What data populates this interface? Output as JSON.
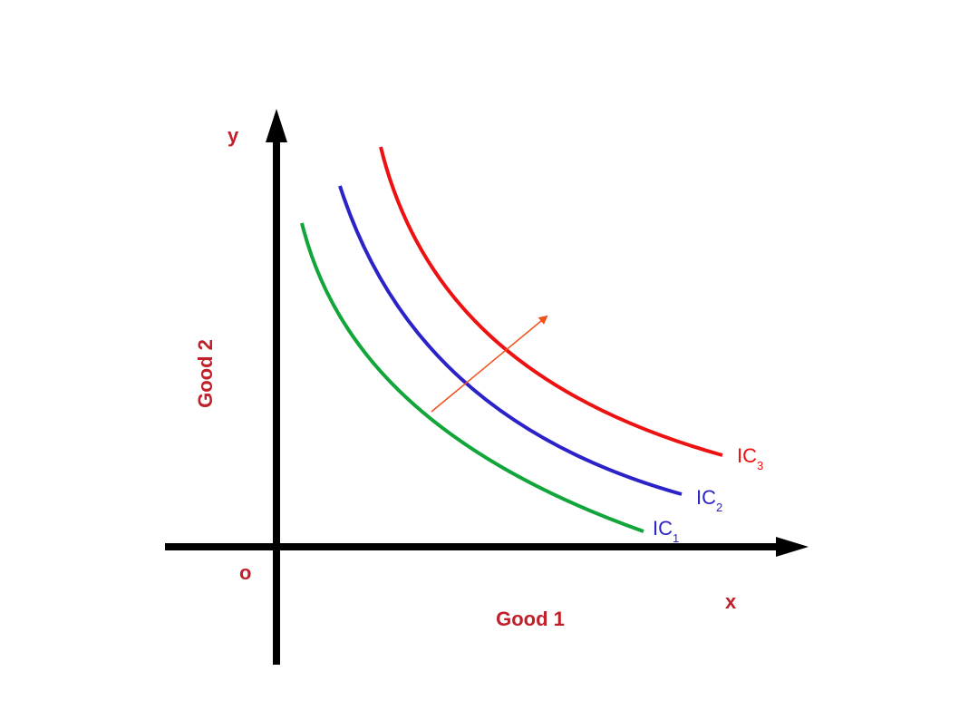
{
  "diagram": {
    "labels": {
      "y_axis_letter": "y",
      "x_axis_letter": "x",
      "origin": "o",
      "y_axis_title": "Good 2",
      "x_axis_title": "Good 1"
    },
    "curves": [
      {
        "prefix": "IC",
        "subscript": "1",
        "color": "#11a53a",
        "label_color": "#2b22c8"
      },
      {
        "prefix": "IC",
        "subscript": "2",
        "color": "#2b22c8",
        "label_color": "#2b22c8"
      },
      {
        "prefix": "IC",
        "subscript": "3",
        "color": "#ee1111",
        "label_color": "#ee1111"
      }
    ],
    "colors": {
      "axis": "#000000",
      "label_text": "#c0202a",
      "arrow": "#f0501a"
    }
  }
}
